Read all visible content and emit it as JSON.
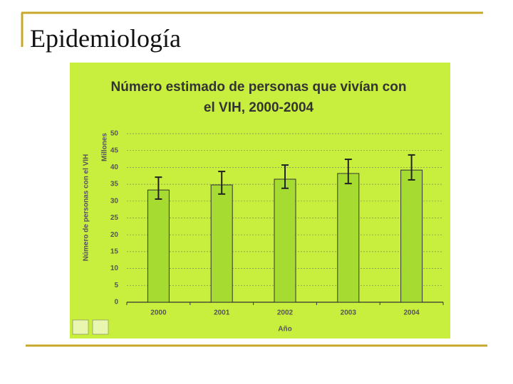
{
  "page_title": "Epidemiología",
  "chart_data": {
    "type": "bar",
    "title": [
      "Número estimado de personas que vivían con",
      "el VIH, 2000-2004"
    ],
    "ylabel": "Número de personas con el VIH",
    "yunit": "Millones",
    "xlabel": "Año",
    "categories": [
      "2000",
      "2001",
      "2002",
      "2003",
      "2004"
    ],
    "values": [
      33.3,
      34.8,
      36.5,
      38.2,
      39.2
    ],
    "lower": [
      30.6,
      32.1,
      33.8,
      35.2,
      36.3
    ],
    "upper": [
      37.1,
      38.8,
      40.7,
      42.4,
      43.7
    ],
    "color": "#a6dc32",
    "ylim": [
      0,
      50
    ],
    "yticks": [
      0,
      5,
      10,
      15,
      20,
      25,
      30,
      35,
      40,
      45,
      50
    ],
    "grid": true
  }
}
